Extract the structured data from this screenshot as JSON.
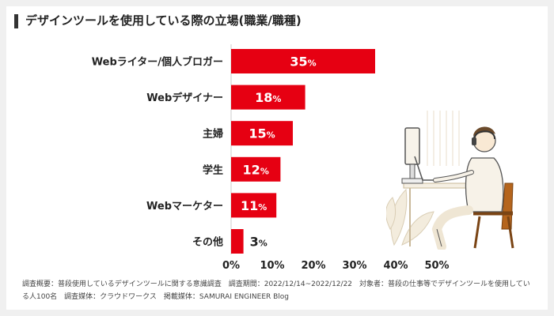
{
  "title": "デザインツールを使用している際の立場(職業/職種)",
  "colors": {
    "bar": "#e60012",
    "text": "#222222",
    "grid": "#cccccc"
  },
  "chart_data": {
    "type": "bar",
    "orientation": "horizontal",
    "title": "デザインツールを使用している際の立場(職業/職種)",
    "categories": [
      "Webライター/個人ブロガー",
      "Webデザイナー",
      "主婦",
      "学生",
      "Webマーケター",
      "その他"
    ],
    "values": [
      35,
      18,
      15,
      12,
      11,
      3
    ],
    "value_unit": "%",
    "x_ticks": [
      "0%",
      "10%",
      "20%",
      "30%",
      "40%",
      "50%"
    ],
    "xlim": [
      0,
      50
    ],
    "grid": false,
    "data_labels": true
  },
  "footnote": {
    "line1": "調査概要：普段使用しているデザインツールに関する意識調査　調査期間：2022/12/14~2022/12/22　対象者：普段の仕事等でデザインツールを使用してい",
    "line2": "る人100名　調査媒体：クラウドワークス　掲載媒体：SAMURAI ENGINEER Blog"
  },
  "illustration": {
    "icon": "person-at-computer-illustration"
  }
}
